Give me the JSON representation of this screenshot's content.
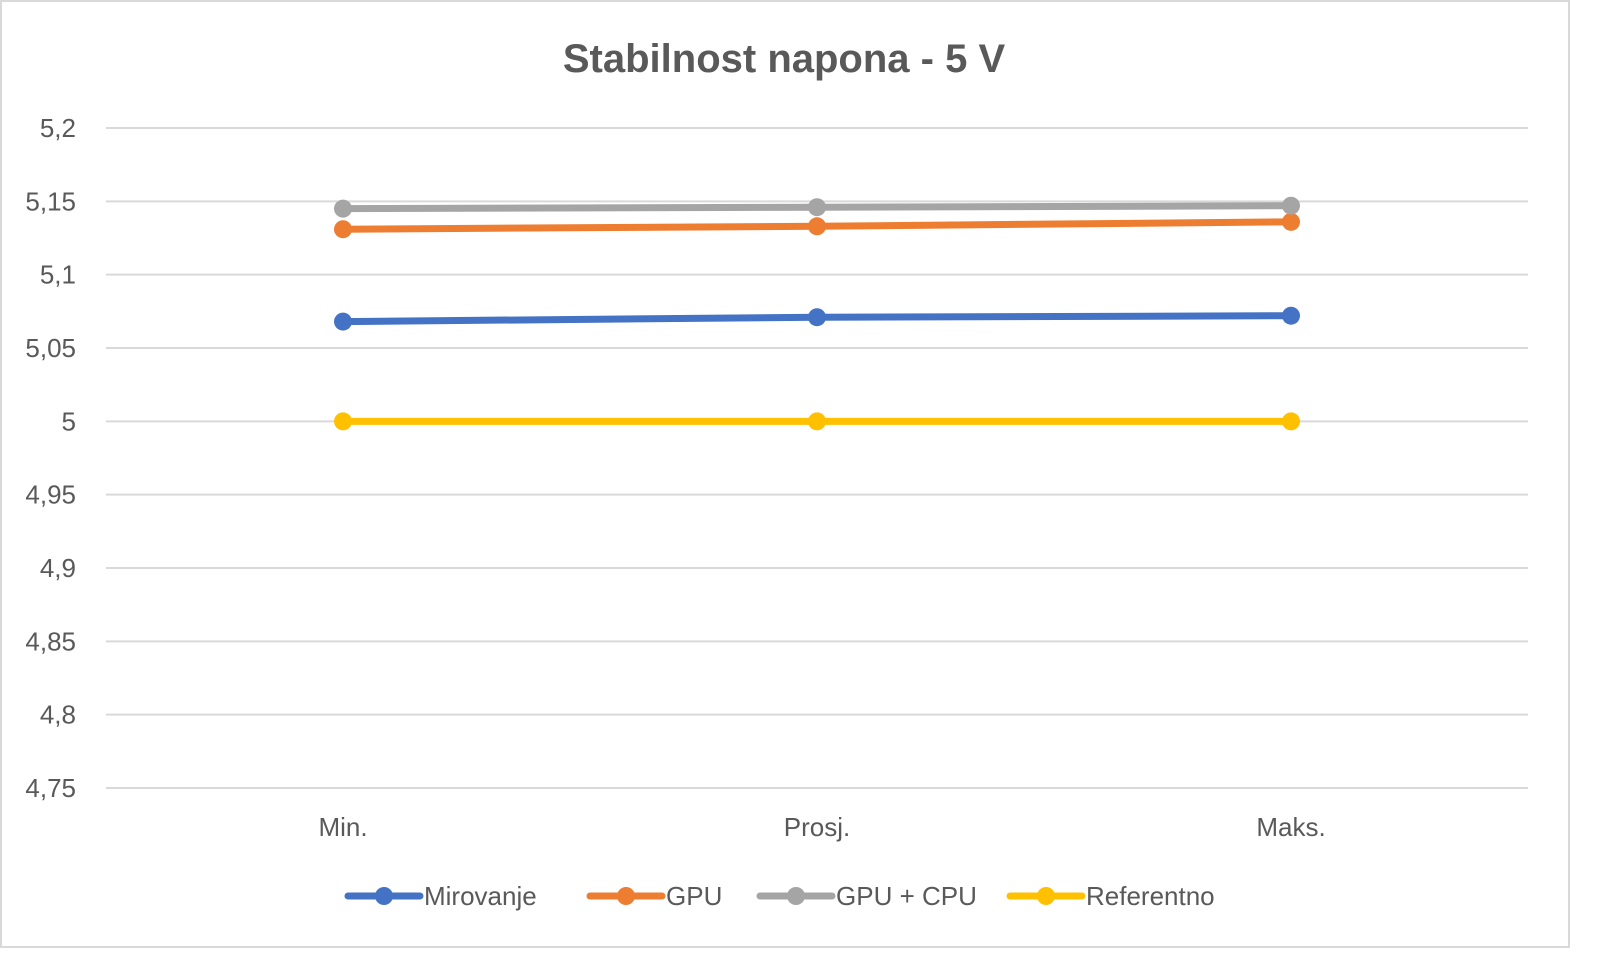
{
  "chart_data": {
    "type": "line",
    "title": "Stabilnost napona - 5 V",
    "xlabel": "",
    "ylabel": "",
    "categories": [
      "Min.",
      "Prosj.",
      "Maks."
    ],
    "ylim": [
      4.75,
      5.2
    ],
    "yticks": [
      5.2,
      5.15,
      5.1,
      5.05,
      5,
      4.95,
      4.9,
      4.85,
      4.8,
      4.75
    ],
    "ytick_labels": [
      "5,2",
      "5,15",
      "5,1",
      "5,05",
      "5",
      "4,95",
      "4,9",
      "4,85",
      "4,8",
      "4,75"
    ],
    "grid": true,
    "legend_position": "bottom",
    "series": [
      {
        "name": "Mirovanje",
        "color": "#4472c4",
        "values": [
          5.068,
          5.071,
          5.072
        ]
      },
      {
        "name": "GPU",
        "color": "#ed7d31",
        "values": [
          5.131,
          5.133,
          5.136
        ]
      },
      {
        "name": "GPU + CPU",
        "color": "#a5a5a5",
        "values": [
          5.145,
          5.146,
          5.147
        ]
      },
      {
        "name": "Referentno",
        "color": "#ffc000",
        "values": [
          5.0,
          5.0,
          5.0
        ]
      }
    ]
  }
}
